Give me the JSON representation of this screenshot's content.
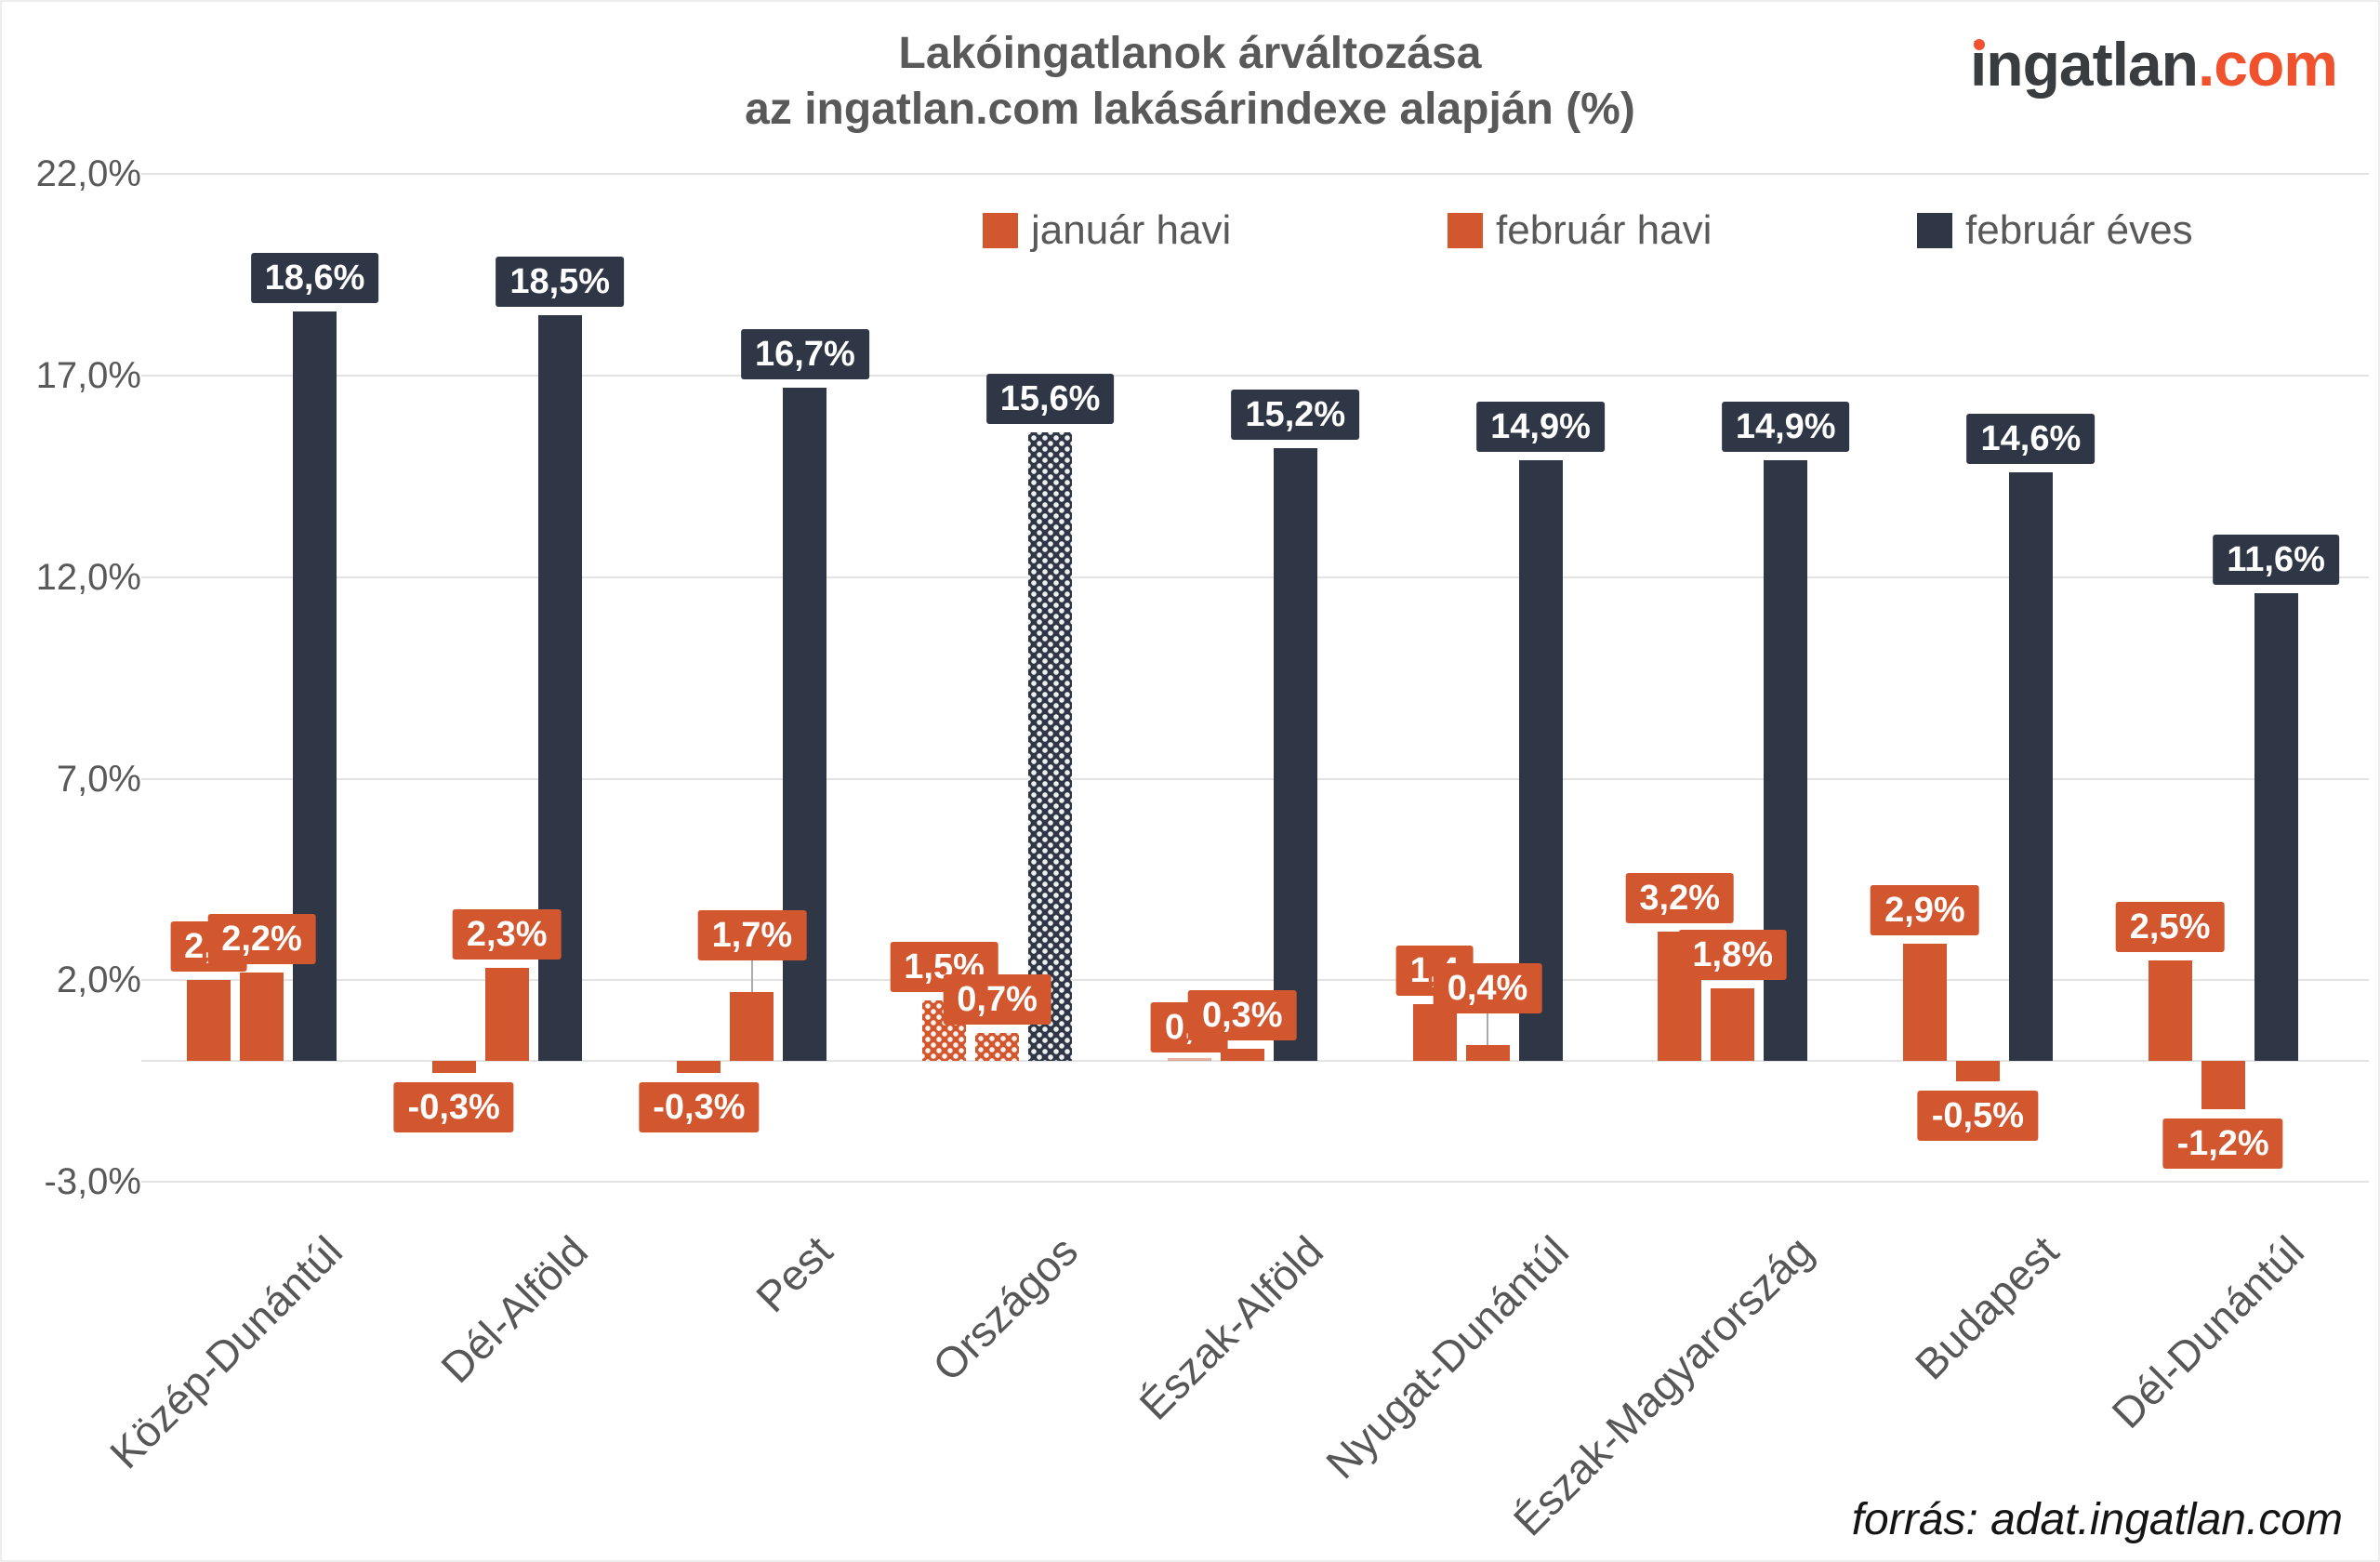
{
  "title": {
    "line1": "Lakóingatlanok árváltozása",
    "line2": "az ingatlan.com lakásárindexe alapján (%)"
  },
  "logo": {
    "dark": "ingatlan",
    "accent": ".com"
  },
  "source": "forrás: adat.ingatlan.com",
  "colors": {
    "orange": "#d2562e",
    "navy": "#2f3746",
    "grid": "#e3e3e3",
    "axis_text": "#595959",
    "logo_dark": "#3a3d40",
    "logo_accent": "#f0522d"
  },
  "legend": [
    {
      "label": "január havi",
      "color": "#d2562e"
    },
    {
      "label": "február havi",
      "color": "#d2562e"
    },
    {
      "label": "február éves",
      "color": "#2f3746"
    }
  ],
  "y_axis": {
    "ticks": [
      "22,0%",
      "17,0%",
      "12,0%",
      "7,0%",
      "2,0%",
      "-3,0%"
    ],
    "tick_values": [
      22,
      17,
      12,
      7,
      2,
      -3
    ],
    "zero_line": true
  },
  "chart_data": {
    "type": "bar",
    "title": "Lakóingatlanok árváltozása az ingatlan.com lakásárindexe alapján (%)",
    "xlabel": "",
    "ylabel": "",
    "ylim": [
      -3,
      22
    ],
    "grid": true,
    "legend_position": "top",
    "patterned_category": "Országos",
    "categories": [
      "Közép-Dunántúl",
      "Dél-Alföld",
      "Pest",
      "Országos",
      "Észak-Alföld",
      "Nyugat-Dunántúl",
      "Észak-Magyarország",
      "Budapest",
      "Dél-Dunántúl"
    ],
    "series": [
      {
        "name": "január havi",
        "color": "#d2562e",
        "values": [
          2.0,
          -0.3,
          -0.3,
          1.5,
          0.0,
          1.4,
          3.2,
          2.9,
          2.5
        ],
        "labels": [
          "2,0",
          "-0,3%",
          "-0,3%",
          "1,5%",
          "0,0",
          "1,4",
          "3,2%",
          "2,9%",
          "2,5%"
        ],
        "leader": [
          false,
          false,
          false,
          false,
          false,
          false,
          false,
          false,
          false
        ]
      },
      {
        "name": "február havi",
        "color": "#d2562e",
        "values": [
          2.2,
          2.3,
          1.7,
          0.7,
          0.3,
          0.4,
          1.8,
          -0.5,
          -1.2
        ],
        "labels": [
          "2,2%",
          "2,3%",
          "1,7%",
          "0,7%",
          "0,3%",
          "0,4%",
          "1,8%",
          "-0,5%",
          "-1,2%"
        ],
        "leader": [
          false,
          false,
          true,
          false,
          false,
          true,
          false,
          false,
          false
        ]
      },
      {
        "name": "február éves",
        "color": "#2f3746",
        "values": [
          18.6,
          18.5,
          16.7,
          15.6,
          15.2,
          14.9,
          14.9,
          14.6,
          11.6
        ],
        "labels": [
          "18,6%",
          "18,5%",
          "16,7%",
          "15,6%",
          "15,2%",
          "14,9%",
          "14,9%",
          "14,6%",
          "11,6%"
        ],
        "leader": [
          false,
          false,
          false,
          false,
          false,
          false,
          false,
          false,
          false
        ]
      }
    ]
  }
}
